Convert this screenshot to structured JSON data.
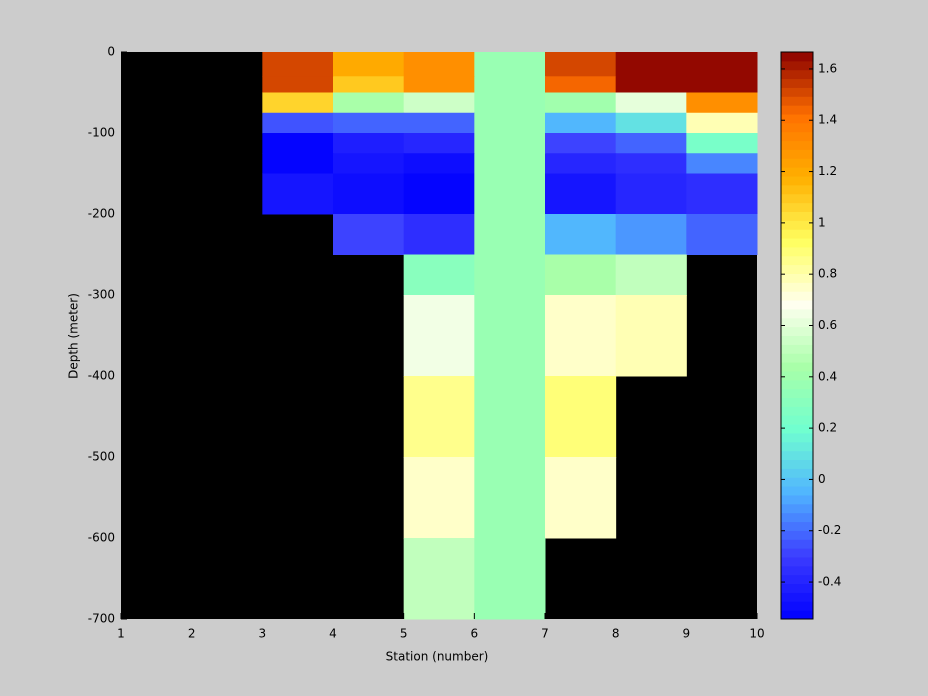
{
  "chart_data": {
    "type": "heatmap",
    "xlabel": "Station (number)",
    "ylabel": "Depth (meter)",
    "x": [
      1,
      2,
      3,
      4,
      5,
      6,
      7,
      8,
      9,
      10
    ],
    "y": [
      0,
      -30,
      -50,
      -75,
      -100,
      -125,
      -150,
      -200,
      -250,
      -300,
      -400,
      -500,
      -600,
      -700
    ],
    "values": [
      [
        null,
        null,
        1.5,
        1.2,
        1.3,
        0.38,
        1.5,
        1.65,
        1.65
      ],
      [
        null,
        null,
        1.5,
        1.1,
        1.3,
        0.38,
        1.45,
        1.65,
        1.65
      ],
      [
        null,
        null,
        1.05,
        0.45,
        0.55,
        0.38,
        0.4,
        0.6,
        1.3
      ],
      [
        null,
        null,
        -0.25,
        -0.2,
        -0.2,
        0.38,
        -0.05,
        0.1,
        0.8
      ],
      [
        null,
        null,
        -0.53,
        -0.42,
        -0.38,
        0.38,
        -0.3,
        -0.2,
        0.25
      ],
      [
        null,
        null,
        -0.53,
        -0.45,
        -0.5,
        0.38,
        -0.4,
        -0.35,
        -0.15
      ],
      [
        null,
        null,
        -0.45,
        -0.48,
        -0.54,
        0.38,
        -0.45,
        -0.38,
        -0.35
      ],
      [
        null,
        null,
        null,
        -0.3,
        -0.35,
        0.38,
        -0.05,
        -0.12,
        -0.2
      ],
      [
        null,
        null,
        null,
        null,
        0.3,
        0.38,
        0.45,
        0.5,
        null
      ],
      [
        null,
        null,
        null,
        null,
        0.65,
        0.38,
        0.75,
        0.8,
        null
      ],
      [
        null,
        null,
        null,
        null,
        0.85,
        0.38,
        0.9,
        null,
        null
      ],
      [
        null,
        null,
        null,
        null,
        0.75,
        0.38,
        0.75,
        null,
        null
      ],
      [
        null,
        null,
        null,
        null,
        0.5,
        0.38,
        null,
        null,
        null
      ]
    ],
    "xlim": [
      1,
      10
    ],
    "ylim": [
      -700,
      0
    ],
    "xticks": [
      1,
      2,
      3,
      4,
      5,
      6,
      7,
      8,
      9,
      10
    ],
    "yticks": [
      0,
      -100,
      -200,
      -300,
      -400,
      -500,
      -600,
      -700
    ],
    "clim": [
      -0.544,
      1.666
    ],
    "cticks": [
      -0.4,
      -0.2,
      0,
      0.2,
      0.4,
      0.6,
      0.8,
      1,
      1.2,
      1.4,
      1.6
    ],
    "colormap": [
      "#0000ff",
      "#3c3cff",
      "#50b4ff",
      "#70ffd0",
      "#a8ffa8",
      "#fffff0",
      "#ffff60",
      "#ffb000",
      "#ff7000",
      "#8b0000"
    ],
    "missing_color": "#000000"
  }
}
